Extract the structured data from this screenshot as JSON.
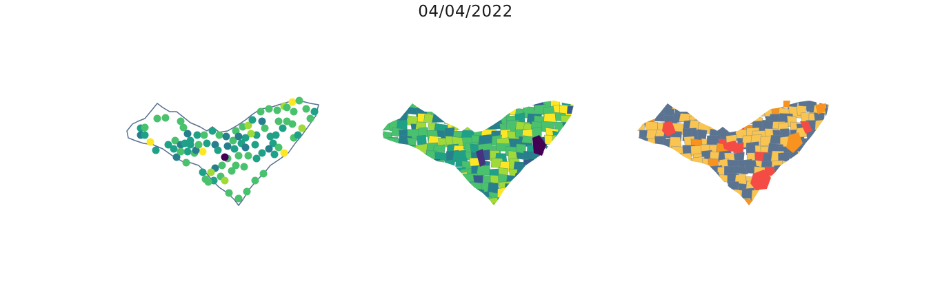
{
  "title": "04/04/2022",
  "colors": {
    "outline": "#56708f",
    "viridis": [
      "#440154",
      "#46327e",
      "#365c8d",
      "#277f8e",
      "#1fa187",
      "#4ac16d",
      "#a0da39",
      "#fde725"
    ],
    "risk": {
      "gray": "#5a7391",
      "yellow": "#f9c450",
      "orange": "#f7931e",
      "red": "#f44b45"
    }
  },
  "panels": [
    {
      "name": "stations-points-map",
      "type": "point-map"
    },
    {
      "name": "municipality-interpolated-map",
      "type": "choropleth-viridis"
    },
    {
      "name": "municipality-risk-category-map",
      "type": "choropleth-categorical"
    }
  ]
}
